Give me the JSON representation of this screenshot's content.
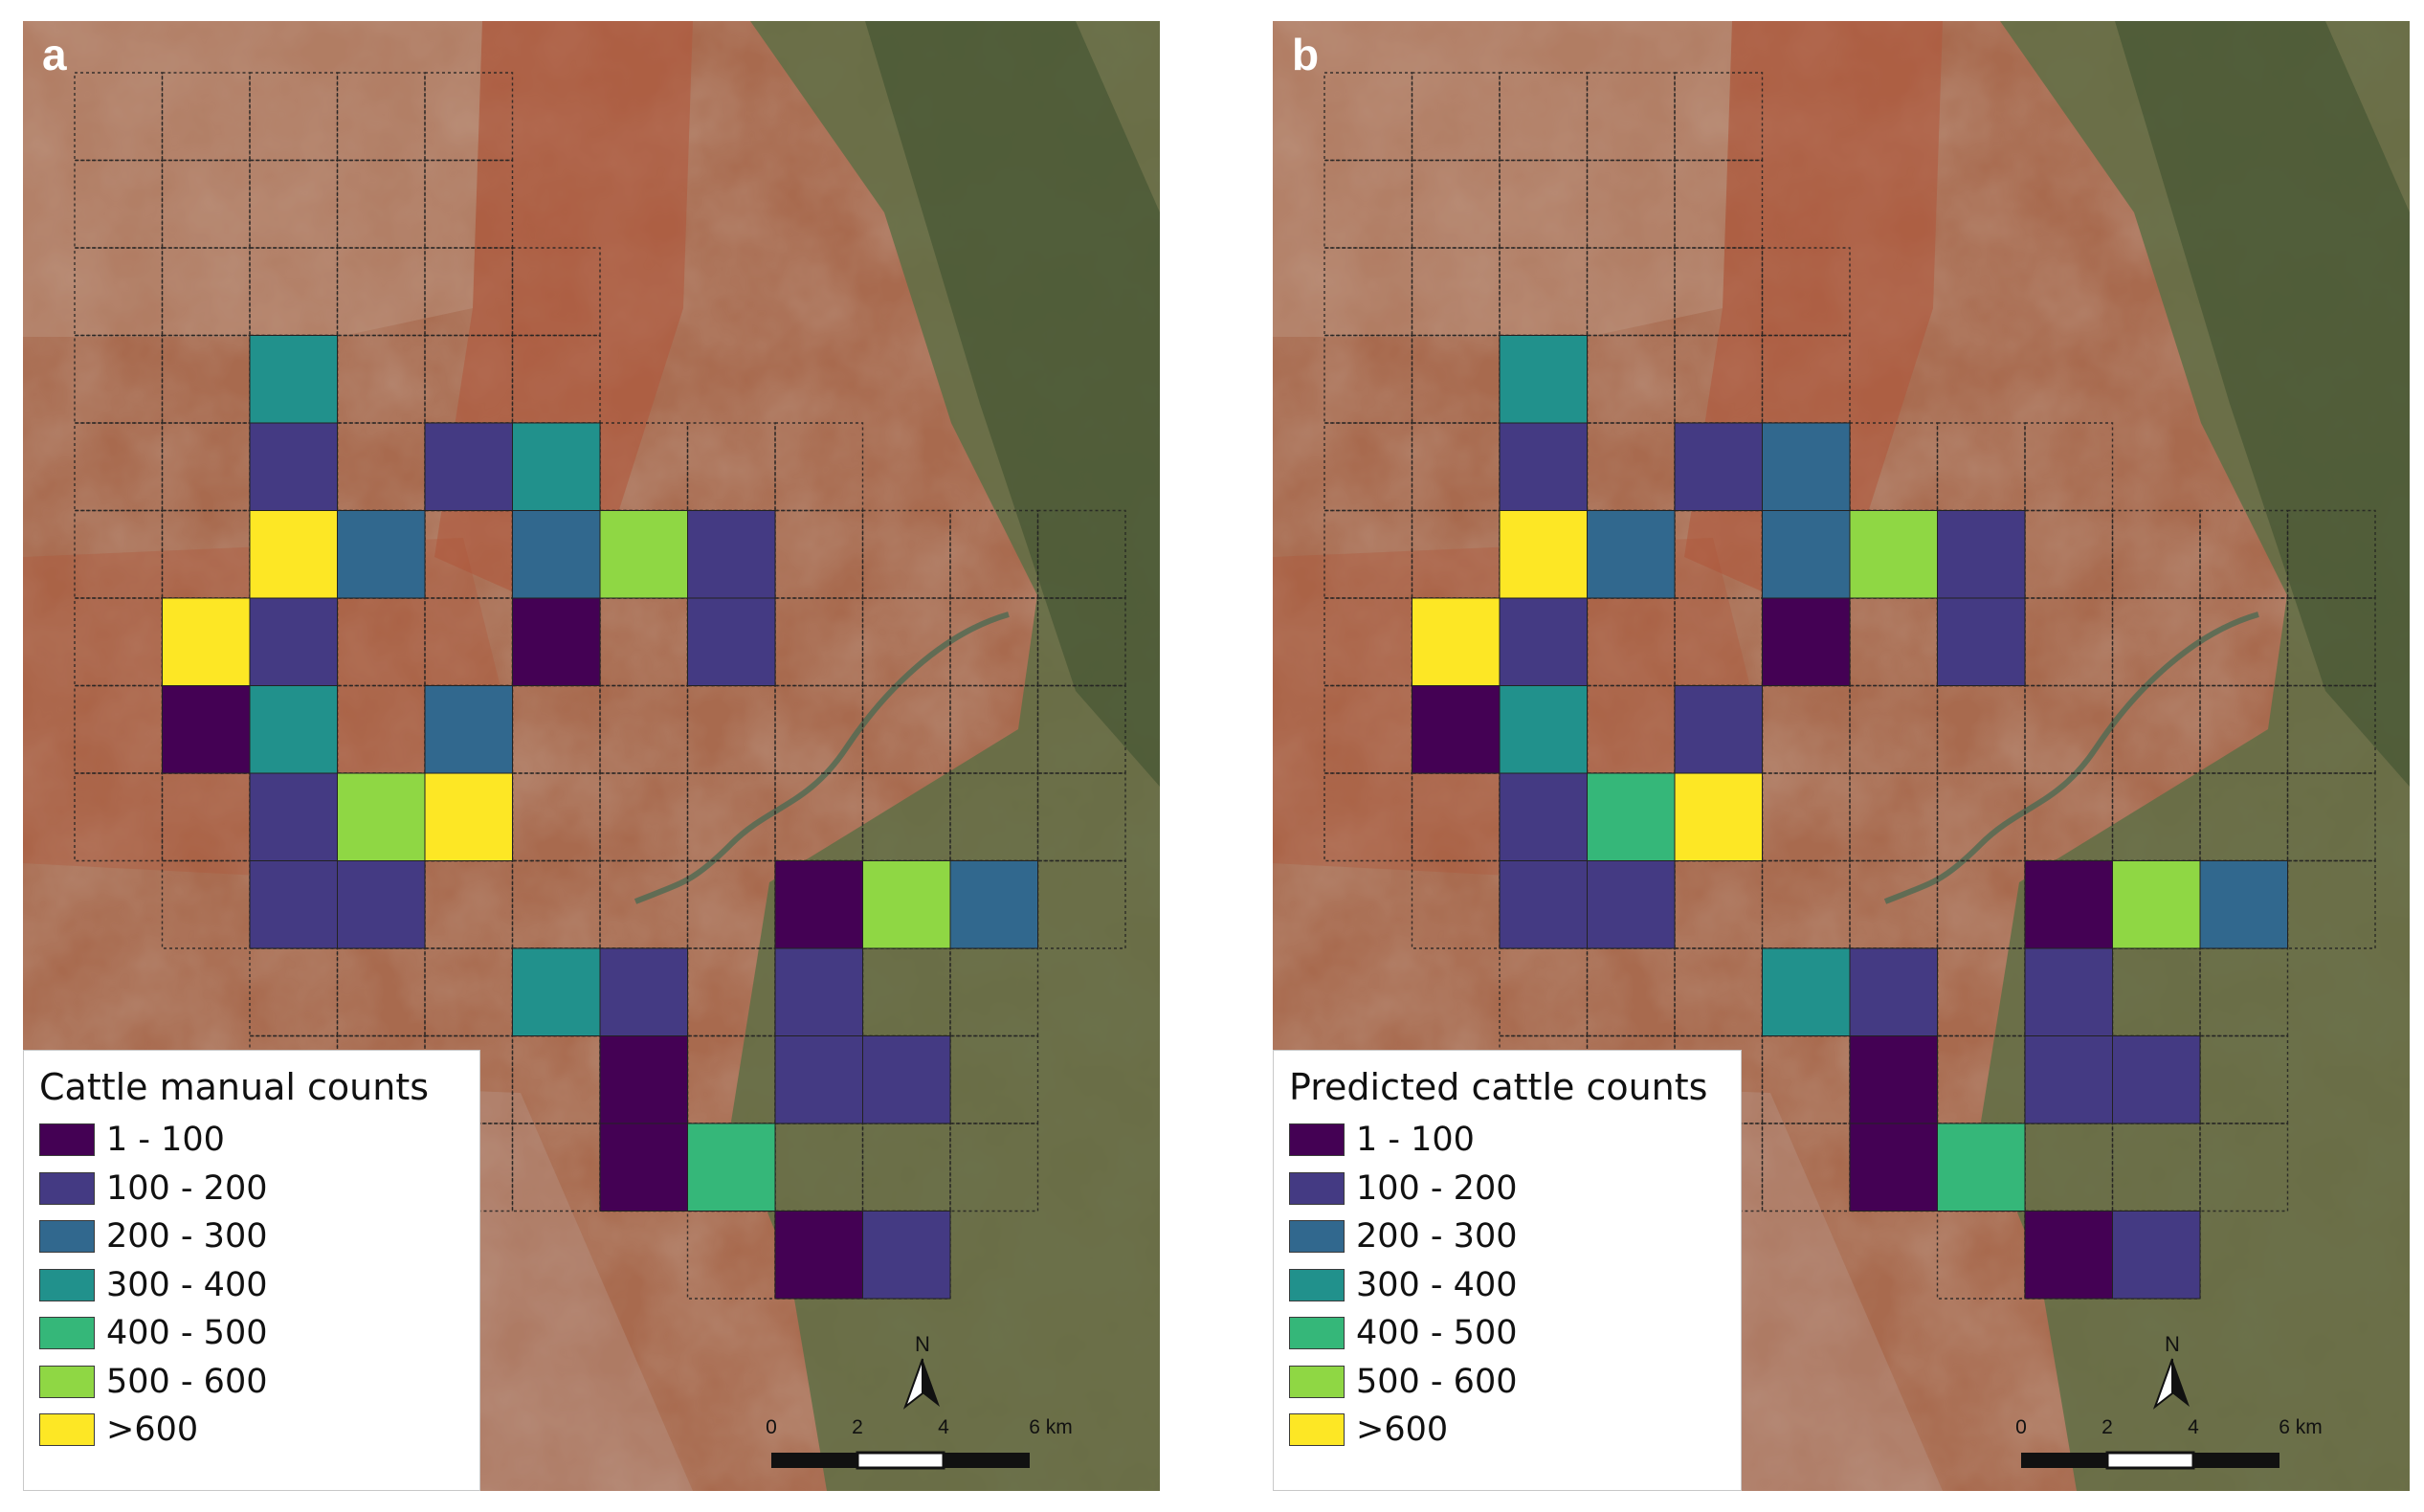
{
  "panels": [
    {
      "letter": "a",
      "legend_title": "Cattle manual counts",
      "cells": [
        {
          "col": 2,
          "row": 3,
          "cls": 3
        },
        {
          "col": 2,
          "row": 4,
          "cls": 1
        },
        {
          "col": 4,
          "row": 4,
          "cls": 1
        },
        {
          "col": 5,
          "row": 4,
          "cls": 3
        },
        {
          "col": 2,
          "row": 5,
          "cls": 6
        },
        {
          "col": 3,
          "row": 5,
          "cls": 2
        },
        {
          "col": 5,
          "row": 5,
          "cls": 2
        },
        {
          "col": 6,
          "row": 5,
          "cls": 5
        },
        {
          "col": 7,
          "row": 5,
          "cls": 1
        },
        {
          "col": 1,
          "row": 6,
          "cls": 6
        },
        {
          "col": 2,
          "row": 6,
          "cls": 1
        },
        {
          "col": 5,
          "row": 6,
          "cls": 0
        },
        {
          "col": 7,
          "row": 6,
          "cls": 1
        },
        {
          "col": 1,
          "row": 7,
          "cls": 0
        },
        {
          "col": 2,
          "row": 7,
          "cls": 3
        },
        {
          "col": 4,
          "row": 7,
          "cls": 2
        },
        {
          "col": 2,
          "row": 8,
          "cls": 1
        },
        {
          "col": 3,
          "row": 8,
          "cls": 5
        },
        {
          "col": 4,
          "row": 8,
          "cls": 6
        },
        {
          "col": 2,
          "row": 9,
          "cls": 1
        },
        {
          "col": 3,
          "row": 9,
          "cls": 1
        },
        {
          "col": 8,
          "row": 9,
          "cls": 0
        },
        {
          "col": 9,
          "row": 9,
          "cls": 5
        },
        {
          "col": 10,
          "row": 9,
          "cls": 2
        },
        {
          "col": 5,
          "row": 10,
          "cls": 3
        },
        {
          "col": 6,
          "row": 10,
          "cls": 1
        },
        {
          "col": 8,
          "row": 10,
          "cls": 1
        },
        {
          "col": 6,
          "row": 11,
          "cls": 0
        },
        {
          "col": 8,
          "row": 11,
          "cls": 1
        },
        {
          "col": 9,
          "row": 11,
          "cls": 1
        },
        {
          "col": 6,
          "row": 12,
          "cls": 0
        },
        {
          "col": 7,
          "row": 12,
          "cls": 4
        },
        {
          "col": 8,
          "row": 13,
          "cls": 0
        },
        {
          "col": 9,
          "row": 13,
          "cls": 1
        }
      ]
    },
    {
      "letter": "b",
      "legend_title": "Predicted cattle counts",
      "cells": [
        {
          "col": 2,
          "row": 3,
          "cls": 3
        },
        {
          "col": 2,
          "row": 4,
          "cls": 1
        },
        {
          "col": 4,
          "row": 4,
          "cls": 1
        },
        {
          "col": 5,
          "row": 4,
          "cls": 2
        },
        {
          "col": 2,
          "row": 5,
          "cls": 6
        },
        {
          "col": 3,
          "row": 5,
          "cls": 2
        },
        {
          "col": 5,
          "row": 5,
          "cls": 2
        },
        {
          "col": 6,
          "row": 5,
          "cls": 5
        },
        {
          "col": 7,
          "row": 5,
          "cls": 1
        },
        {
          "col": 1,
          "row": 6,
          "cls": 6
        },
        {
          "col": 2,
          "row": 6,
          "cls": 1
        },
        {
          "col": 5,
          "row": 6,
          "cls": 0
        },
        {
          "col": 7,
          "row": 6,
          "cls": 1
        },
        {
          "col": 1,
          "row": 7,
          "cls": 0
        },
        {
          "col": 2,
          "row": 7,
          "cls": 3
        },
        {
          "col": 4,
          "row": 7,
          "cls": 1
        },
        {
          "col": 2,
          "row": 8,
          "cls": 1
        },
        {
          "col": 3,
          "row": 8,
          "cls": 4
        },
        {
          "col": 4,
          "row": 8,
          "cls": 6
        },
        {
          "col": 2,
          "row": 9,
          "cls": 1
        },
        {
          "col": 3,
          "row": 9,
          "cls": 1
        },
        {
          "col": 8,
          "row": 9,
          "cls": 0
        },
        {
          "col": 9,
          "row": 9,
          "cls": 5
        },
        {
          "col": 10,
          "row": 9,
          "cls": 2
        },
        {
          "col": 5,
          "row": 10,
          "cls": 3
        },
        {
          "col": 6,
          "row": 10,
          "cls": 1
        },
        {
          "col": 8,
          "row": 10,
          "cls": 1
        },
        {
          "col": 6,
          "row": 11,
          "cls": 0
        },
        {
          "col": 8,
          "row": 11,
          "cls": 1
        },
        {
          "col": 9,
          "row": 11,
          "cls": 1
        },
        {
          "col": 6,
          "row": 12,
          "cls": 0
        },
        {
          "col": 7,
          "row": 12,
          "cls": 4
        },
        {
          "col": 8,
          "row": 13,
          "cls": 0
        },
        {
          "col": 9,
          "row": 13,
          "cls": 1
        }
      ]
    }
  ],
  "legend_classes": [
    {
      "label": "1 - 100",
      "color": "#440154"
    },
    {
      "label": "100 - 200",
      "color": "#443a83"
    },
    {
      "label": "200 - 300",
      "color": "#31688e"
    },
    {
      "label": "300 - 400",
      "color": "#21918c"
    },
    {
      "label": "400 - 500",
      "color": "#35b779"
    },
    {
      "label": "500 - 600",
      "color": "#8fd744"
    },
    {
      "label": ">600",
      "color": "#fde725"
    }
  ],
  "scale_bar": {
    "ticks": [
      "0",
      "2",
      "4",
      "6 km"
    ]
  },
  "north_label": "N",
  "map_colors": {
    "terrain": "#a86a4e",
    "red_soil": "#b0553a",
    "escarpment": "#5f6e45",
    "grid_line": "#222222"
  }
}
